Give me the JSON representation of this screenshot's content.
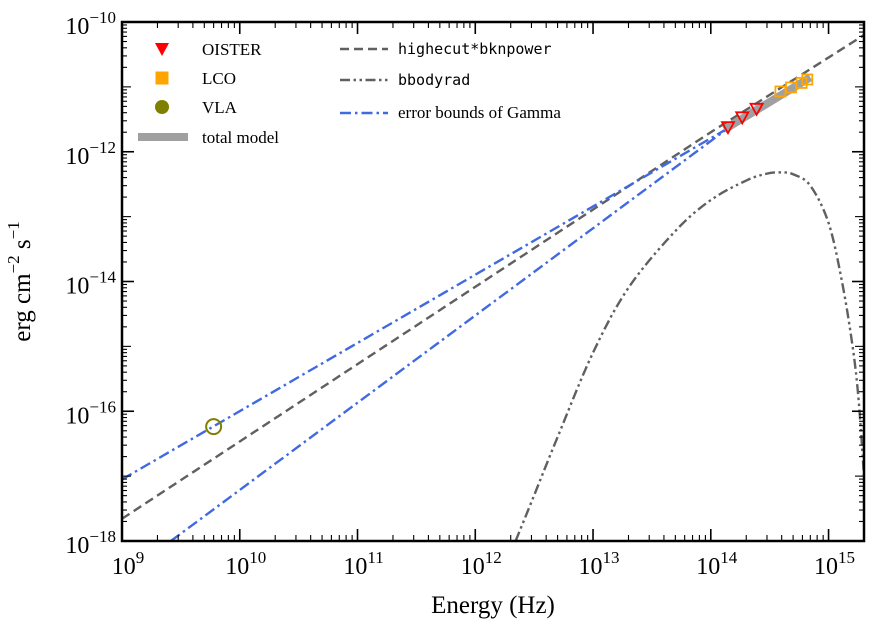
{
  "chart_data": {
    "type": "scatter",
    "title": "",
    "xlabel": "Energy (Hz)",
    "ylabel_parts": {
      "base": "erg cm",
      "exp1": "−2",
      "mid": " s",
      "exp2": "−1"
    },
    "x_scale": "log",
    "y_scale": "log",
    "xlim": [
      1000000000.0,
      2000000000000000.0
    ],
    "ylim": [
      1e-18,
      1e-10
    ],
    "x_ticks": [
      {
        "value": 1000000000.0,
        "base": "10",
        "exp": "9"
      },
      {
        "value": 10000000000.0,
        "base": "10",
        "exp": "10"
      },
      {
        "value": 100000000000.0,
        "base": "10",
        "exp": "11"
      },
      {
        "value": 1000000000000.0,
        "base": "10",
        "exp": "12"
      },
      {
        "value": 10000000000000.0,
        "base": "10",
        "exp": "13"
      },
      {
        "value": 100000000000000.0,
        "base": "10",
        "exp": "14"
      },
      {
        "value": 1000000000000000.0,
        "base": "10",
        "exp": "15"
      }
    ],
    "y_ticks": [
      {
        "value": 1e-18,
        "base": "10",
        "exp": "−18"
      },
      {
        "value": 1e-16,
        "base": "10",
        "exp": "−16"
      },
      {
        "value": 1e-14,
        "base": "10",
        "exp": "−14"
      },
      {
        "value": 1e-12,
        "base": "10",
        "exp": "−12"
      },
      {
        "value": 1e-10,
        "base": "10",
        "exp": "−10"
      }
    ],
    "colors": {
      "oister": "#ff0000",
      "lco": "#ffa500",
      "vla": "#808000",
      "total_model": "#a0a0a0",
      "model_line": "#606060",
      "gamma_bounds": "#4169e1"
    },
    "legend_left": [
      {
        "key": "oister",
        "label": "OISTER",
        "marker": "triangle-down"
      },
      {
        "key": "lco",
        "label": "LCO",
        "marker": "square"
      },
      {
        "key": "vla",
        "label": "VLA",
        "marker": "circle"
      },
      {
        "key": "total",
        "label": "total model",
        "marker": "thick-line"
      }
    ],
    "legend_right": [
      {
        "key": "highecut",
        "label": "highecut*bknpower",
        "style": "dashed"
      },
      {
        "key": "bbody",
        "label": "bbodyrad",
        "style": "dash-dot-dot"
      },
      {
        "key": "gamma",
        "label": "error bounds of Gamma",
        "style": "dash-dot"
      }
    ],
    "series": [
      {
        "name": "OISTER",
        "type": "scatter",
        "marker": "triangle-down",
        "points": [
          [
            140000000000000.0,
            2.4e-12
          ],
          [
            185000000000000.0,
            3.4e-12
          ],
          [
            245000000000000.0,
            4.6e-12
          ]
        ]
      },
      {
        "name": "LCO",
        "type": "scatter",
        "marker": "square",
        "points": [
          [
            390000000000000.0,
            8.5e-12
          ],
          [
            480000000000000.0,
            9.8e-12
          ],
          [
            590000000000000.0,
            1.15e-11
          ],
          [
            660000000000000.0,
            1.3e-11
          ]
        ]
      },
      {
        "name": "VLA",
        "type": "scatter",
        "marker": "circle",
        "points": [
          [
            6000000000.0,
            5.8e-17
          ]
        ]
      },
      {
        "name": "highecut*bknpower",
        "type": "line",
        "style": "dashed",
        "points": [
          [
            1000000000.0,
            2.2e-18
          ],
          [
            100000000000000.0,
            2e-12
          ],
          [
            2000000000000000.0,
            6.3e-11
          ]
        ]
      },
      {
        "name": "error bounds of Gamma (upper)",
        "type": "line",
        "style": "dash-dot",
        "points": [
          [
            1000000000.0,
            8.9e-18
          ],
          [
            140000000000000.0,
            2.3e-12
          ],
          [
            650000000000000.0,
            1.3e-11
          ]
        ]
      },
      {
        "name": "error bounds of Gamma (lower)",
        "type": "line",
        "style": "dash-dot",
        "points": [
          [
            2600000000.0,
            1e-18
          ],
          [
            140000000000000.0,
            2.3e-12
          ],
          [
            650000000000000.0,
            1.3e-11
          ]
        ]
      },
      {
        "name": "total model",
        "type": "line",
        "style": "thick",
        "points": [
          [
            130000000000000.0,
            2.2e-12
          ],
          [
            700000000000000.0,
            1.4e-11
          ]
        ]
      },
      {
        "name": "bbodyrad",
        "type": "line",
        "style": "dash-dot-dot",
        "points": [
          [
            2200000000000.0,
            1e-18
          ],
          [
            3000000000000.0,
            4e-18
          ],
          [
            5000000000000.0,
            4e-17
          ],
          [
            10000000000000.0,
            8e-16
          ],
          [
            20000000000000.0,
            8e-15
          ],
          [
            50000000000000.0,
            6e-14
          ],
          [
            100000000000000.0,
            1.8e-13
          ],
          [
            200000000000000.0,
            3.6e-13
          ],
          [
            300000000000000.0,
            4.6e-13
          ],
          [
            400000000000000.0,
            4.8e-13
          ],
          [
            500000000000000.0,
            4.5e-13
          ],
          [
            700000000000000.0,
            3e-13
          ],
          [
            1000000000000000.0,
            8e-14
          ],
          [
            1300000000000000.0,
            1e-14
          ],
          [
            1600000000000000.0,
            1e-15
          ],
          [
            1800000000000000.0,
            1.5e-16
          ],
          [
            2000000000000000.0,
            1e-17
          ]
        ]
      }
    ]
  }
}
